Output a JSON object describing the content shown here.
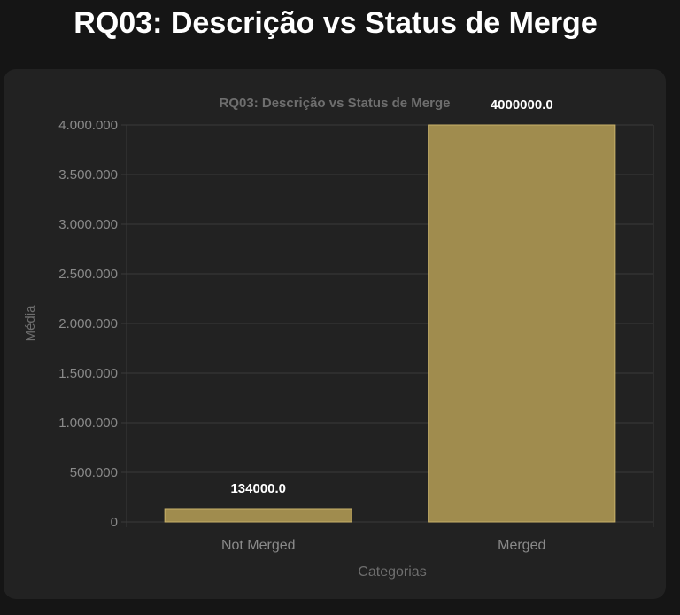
{
  "page": {
    "title": "RQ03: Descrição vs Status de Merge"
  },
  "colors": {
    "background": "#151515",
    "card": "#222222",
    "bar_fill": "#a08c4e",
    "bar_stroke": "#c9b26a",
    "grid": "#3a3a3a",
    "tick_text": "#8a8a8a",
    "data_label": "#ffffff"
  },
  "chart_data": {
    "type": "bar",
    "title": "RQ03: Descrição vs Status de Merge",
    "xlabel": "Categorias",
    "ylabel": "Média",
    "categories": [
      "Not Merged",
      "Merged"
    ],
    "values": [
      134000,
      4000000
    ],
    "data_labels": [
      "134000.0",
      "4000000.0"
    ],
    "ylim": [
      0,
      4000000
    ],
    "yticks": [
      0,
      500000,
      1000000,
      1500000,
      2000000,
      2500000,
      3000000,
      3500000,
      4000000
    ],
    "ytick_labels": [
      "0",
      "500.000",
      "1.000.000",
      "1.500.000",
      "2.000.000",
      "2.500.000",
      "3.000.000",
      "3.500.000",
      "4.000.000"
    ],
    "grid": true,
    "legend": "none"
  }
}
